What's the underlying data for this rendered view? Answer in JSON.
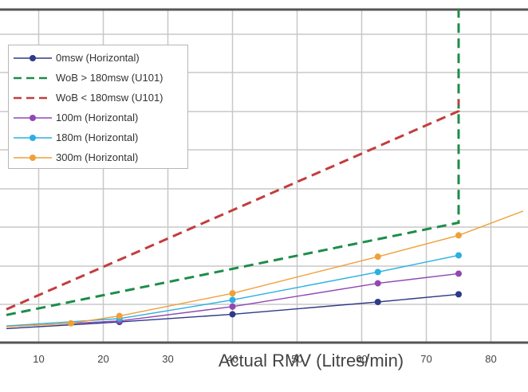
{
  "chart_data": {
    "type": "line",
    "xlabel": "Actual RMV (Litres/min)",
    "xlim": [
      5,
      85
    ],
    "xticks": [
      10,
      20,
      30,
      40,
      50,
      60,
      70,
      80
    ],
    "ylim": [
      0,
      10
    ],
    "grid": true,
    "legend_position": "top-left",
    "series": [
      {
        "name": "0msw (Horizontal)",
        "color": "#2e3a87",
        "dash": false,
        "markers": true,
        "points": [
          [
            5,
            0.42
          ],
          [
            22.5,
            0.62
          ],
          [
            40,
            0.85
          ],
          [
            62.5,
            1.22
          ],
          [
            75,
            1.45
          ]
        ]
      },
      {
        "name": "WoB > 180msw (U101)",
        "color": "#1e8c4b",
        "dash": true,
        "markers": false,
        "points": [
          [
            5,
            0.83
          ],
          [
            75,
            3.6
          ],
          [
            75,
            10
          ]
        ]
      },
      {
        "name": "WoB < 180msw (U101)",
        "color": "#c33d3d",
        "dash": true,
        "markers": false,
        "points": [
          [
            5,
            1.0
          ],
          [
            75,
            6.95
          ],
          [
            75,
            7.3
          ]
        ]
      },
      {
        "name": "100m (Horizontal)",
        "color": "#9147b3",
        "dash": false,
        "markers": true,
        "points": [
          [
            5,
            0.48
          ],
          [
            22.5,
            0.65
          ],
          [
            40,
            1.08
          ],
          [
            62.5,
            1.78
          ],
          [
            75,
            2.07
          ]
        ]
      },
      {
        "name": "180m (Horizontal)",
        "color": "#2ab0e0",
        "dash": false,
        "markers": true,
        "points": [
          [
            5,
            0.5
          ],
          [
            22.5,
            0.72
          ],
          [
            40,
            1.28
          ],
          [
            62.5,
            2.12
          ],
          [
            75,
            2.62
          ]
        ]
      },
      {
        "name": "300m (Horizontal)",
        "color": "#efa03a",
        "dash": false,
        "markers": true,
        "points": [
          [
            5,
            0.48
          ],
          [
            15,
            0.58
          ],
          [
            22.5,
            0.8
          ],
          [
            40,
            1.48
          ],
          [
            62.5,
            2.58
          ],
          [
            75,
            3.22
          ],
          [
            85,
            3.95
          ]
        ]
      }
    ]
  }
}
